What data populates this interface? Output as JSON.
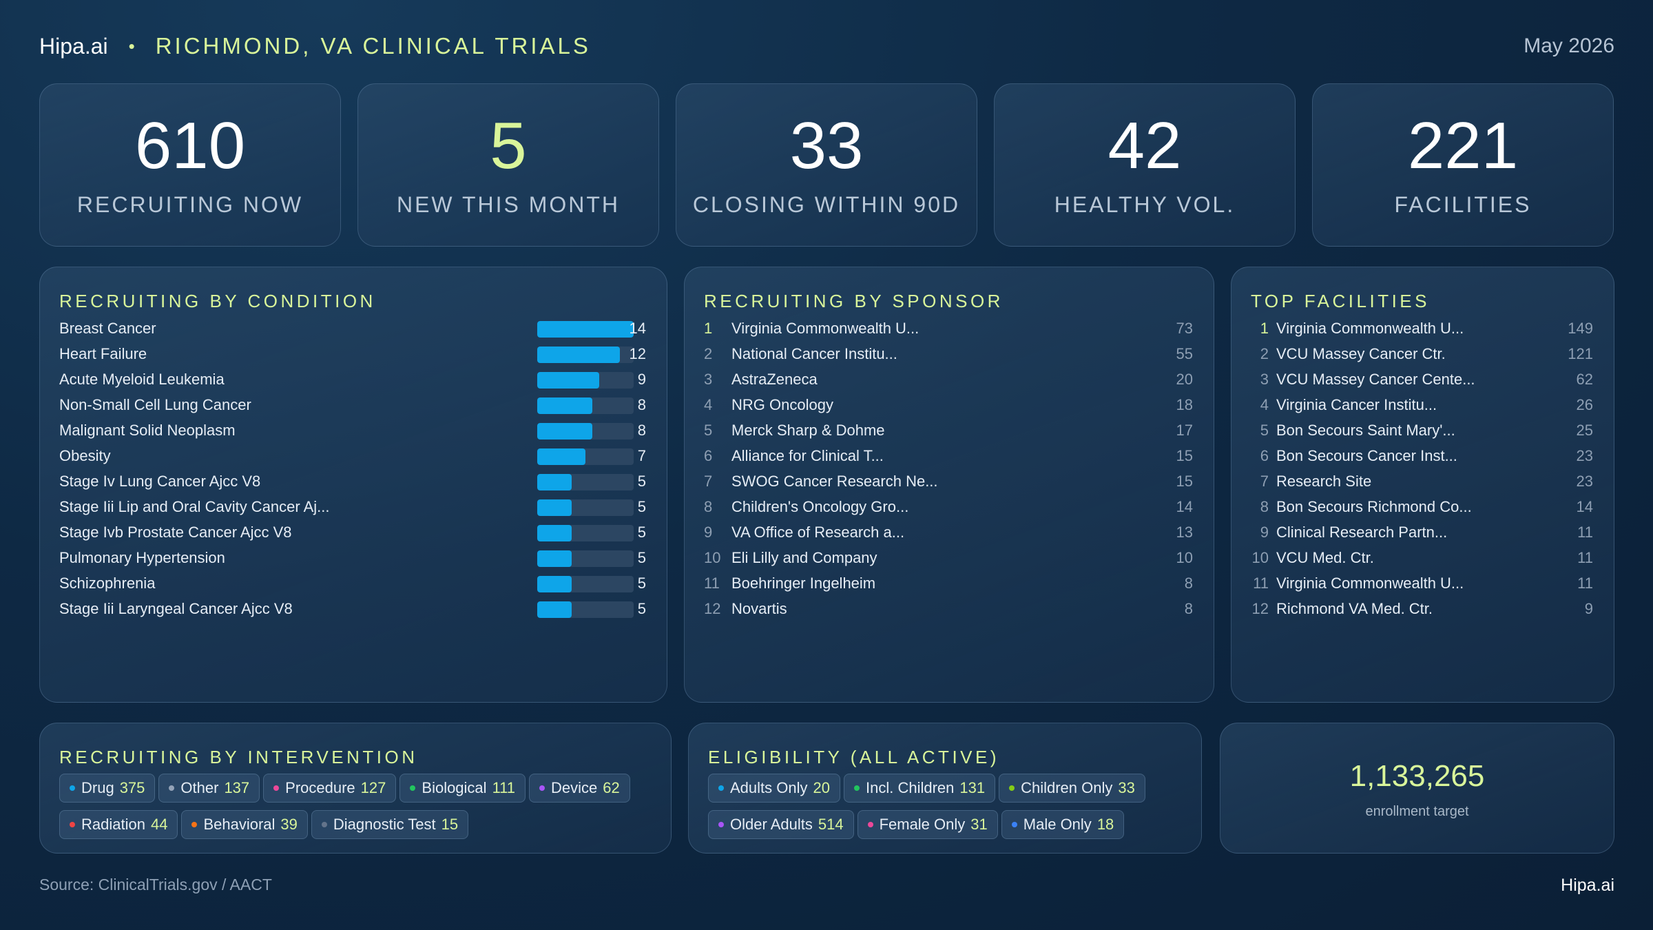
{
  "header": {
    "brand": "Hipa.ai",
    "separator": "•",
    "title": "RICHMOND, VA CLINICAL TRIALS",
    "date": "May 2026"
  },
  "kpis": [
    {
      "value": "610",
      "label": "RECRUITING NOW"
    },
    {
      "value": "5",
      "label": "NEW THIS MONTH"
    },
    {
      "value": "33",
      "label": "CLOSING WITHIN 90D"
    },
    {
      "value": "42",
      "label": "HEALTHY VOL."
    },
    {
      "value": "221",
      "label": "FACILITIES"
    }
  ],
  "conditions": {
    "title": "RECRUITING BY CONDITION",
    "max": 14,
    "items": [
      {
        "name": "Breast Cancer",
        "value": 14
      },
      {
        "name": "Heart Failure",
        "value": 12
      },
      {
        "name": "Acute Myeloid Leukemia",
        "value": 9
      },
      {
        "name": "Non-Small Cell Lung Cancer",
        "value": 8
      },
      {
        "name": "Malignant Solid Neoplasm",
        "value": 8
      },
      {
        "name": "Obesity",
        "value": 7
      },
      {
        "name": "Stage Iv Lung Cancer Ajcc V8",
        "value": 5
      },
      {
        "name": "Stage Iii Lip and Oral Cavity Cancer Aj...",
        "value": 5
      },
      {
        "name": "Stage Ivb Prostate Cancer Ajcc V8",
        "value": 5
      },
      {
        "name": "Pulmonary Hypertension",
        "value": 5
      },
      {
        "name": "Schizophrenia",
        "value": 5
      },
      {
        "name": "Stage Iii Laryngeal Cancer Ajcc V8",
        "value": 5
      }
    ]
  },
  "sponsors": {
    "title": "RECRUITING BY SPONSOR",
    "items": [
      {
        "rank": "1",
        "name": "Virginia Commonwealth U...",
        "value": "73"
      },
      {
        "rank": "2",
        "name": "National Cancer Institu...",
        "value": "55"
      },
      {
        "rank": "3",
        "name": "AstraZeneca",
        "value": "20"
      },
      {
        "rank": "4",
        "name": "NRG Oncology",
        "value": "18"
      },
      {
        "rank": "5",
        "name": "Merck Sharp & Dohme",
        "value": "17"
      },
      {
        "rank": "6",
        "name": "Alliance for Clinical T...",
        "value": "15"
      },
      {
        "rank": "7",
        "name": "SWOG Cancer Research Ne...",
        "value": "15"
      },
      {
        "rank": "8",
        "name": "Children's Oncology Gro...",
        "value": "14"
      },
      {
        "rank": "9",
        "name": "VA Office of Research a...",
        "value": "13"
      },
      {
        "rank": "10",
        "name": "Eli Lilly and Company",
        "value": "10"
      },
      {
        "rank": "11",
        "name": "Boehringer Ingelheim",
        "value": "8"
      },
      {
        "rank": "12",
        "name": "Novartis",
        "value": "8"
      }
    ]
  },
  "facilities": {
    "title": "TOP FACILITIES",
    "items": [
      {
        "rank": "1",
        "name": "Virginia Commonwealth U...",
        "value": "149"
      },
      {
        "rank": "2",
        "name": "VCU Massey Cancer Ctr.",
        "value": "121"
      },
      {
        "rank": "3",
        "name": "VCU Massey Cancer Cente...",
        "value": "62"
      },
      {
        "rank": "4",
        "name": "Virginia Cancer Institu...",
        "value": "26"
      },
      {
        "rank": "5",
        "name": "Bon Secours Saint Mary'...",
        "value": "25"
      },
      {
        "rank": "6",
        "name": "Bon Secours Cancer Inst...",
        "value": "23"
      },
      {
        "rank": "7",
        "name": "Research Site",
        "value": "23"
      },
      {
        "rank": "8",
        "name": "Bon Secours Richmond Co...",
        "value": "14"
      },
      {
        "rank": "9",
        "name": "Clinical Research Partn...",
        "value": "11"
      },
      {
        "rank": "10",
        "name": "VCU Med. Ctr.",
        "value": "11"
      },
      {
        "rank": "11",
        "name": "Virginia Commonwealth U...",
        "value": "11"
      },
      {
        "rank": "12",
        "name": "Richmond VA Med. Ctr.",
        "value": "9"
      }
    ]
  },
  "interventions": {
    "title": "RECRUITING BY INTERVENTION",
    "items": [
      {
        "label": "Drug",
        "count": "375",
        "color": "#0ea5e9"
      },
      {
        "label": "Other",
        "count": "137",
        "color": "#94a3b8"
      },
      {
        "label": "Procedure",
        "count": "127",
        "color": "#ec4899"
      },
      {
        "label": "Biological",
        "count": "111",
        "color": "#22c55e"
      },
      {
        "label": "Device",
        "count": "62",
        "color": "#a855f7"
      },
      {
        "label": "Radiation",
        "count": "44",
        "color": "#ef4444"
      },
      {
        "label": "Behavioral",
        "count": "39",
        "color": "#f97316"
      },
      {
        "label": "Diagnostic Test",
        "count": "15",
        "color": "#64748b"
      }
    ]
  },
  "eligibility": {
    "title": "ELIGIBILITY (ALL ACTIVE)",
    "items": [
      {
        "label": "Adults Only",
        "count": "20",
        "color": "#0ea5e9"
      },
      {
        "label": "Incl. Children",
        "count": "131",
        "color": "#22c55e"
      },
      {
        "label": "Children Only",
        "count": "33",
        "color": "#84cc16"
      },
      {
        "label": "Older Adults",
        "count": "514",
        "color": "#a855f7"
      },
      {
        "label": "Female Only",
        "count": "31",
        "color": "#ec4899"
      },
      {
        "label": "Male Only",
        "count": "18",
        "color": "#3b82f6"
      }
    ]
  },
  "enrollment": {
    "value": "1,133,265",
    "label": "enrollment target"
  },
  "footer": {
    "source": "Source: ClinicalTrials.gov /  AACT",
    "brand": "Hipa.ai"
  }
}
